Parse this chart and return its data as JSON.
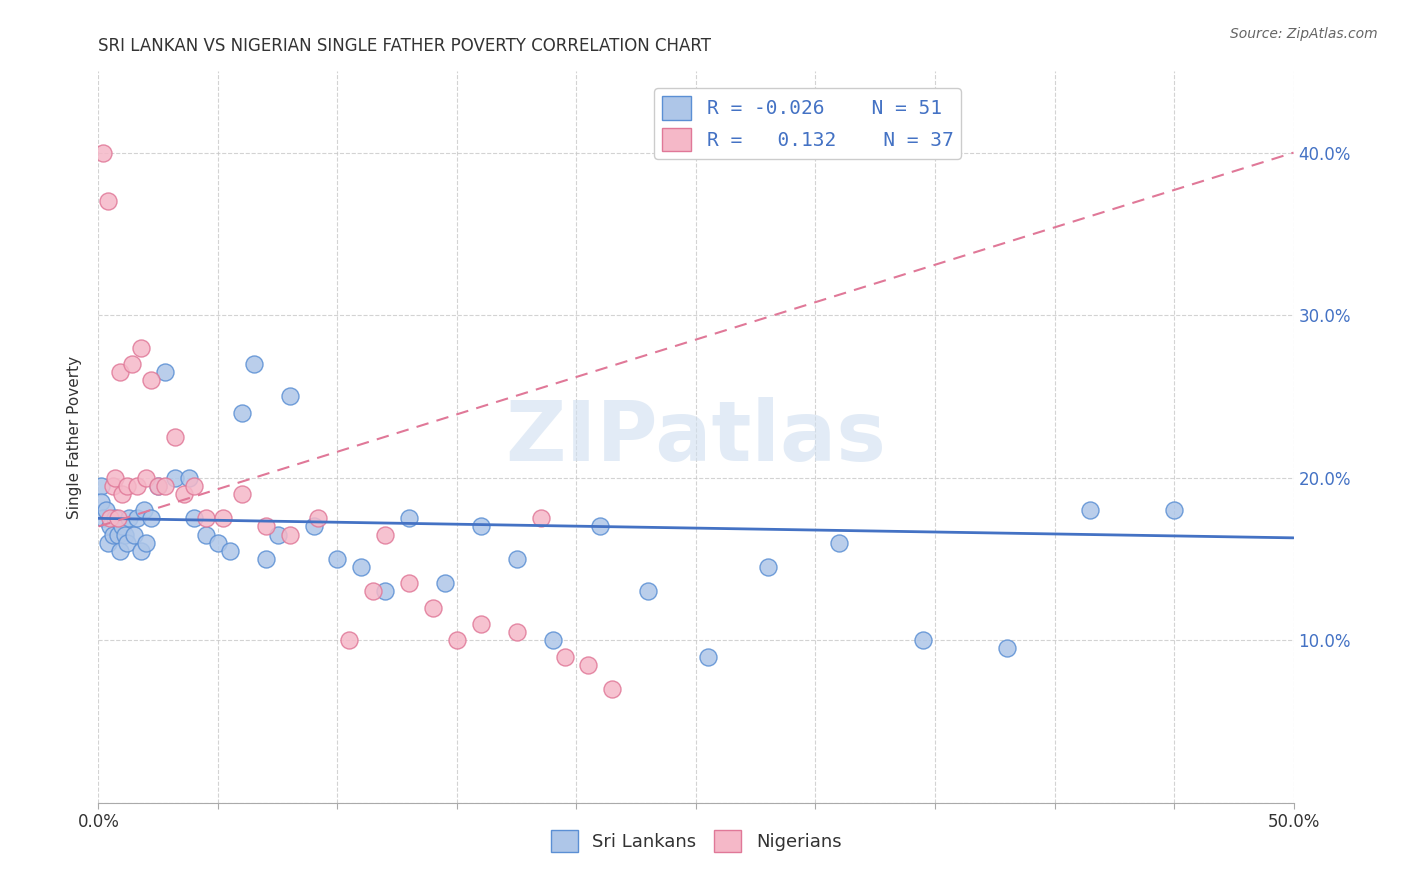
{
  "title": "SRI LANKAN VS NIGERIAN SINGLE FATHER POVERTY CORRELATION CHART",
  "source": "Source: ZipAtlas.com",
  "ylabel": "Single Father Poverty",
  "xlim": [
    0.0,
    0.5
  ],
  "ylim": [
    0.0,
    0.45
  ],
  "xtick_vals": [
    0.0,
    0.05,
    0.1,
    0.15,
    0.2,
    0.25,
    0.3,
    0.35,
    0.4,
    0.45,
    0.5
  ],
  "ytick_vals": [
    0.0,
    0.1,
    0.2,
    0.3,
    0.4
  ],
  "background_color": "#ffffff",
  "grid_color": "#c8c8c8",
  "watermark": "ZIPatlas",
  "sri_lankan_fill": "#aec6e8",
  "sri_lankan_edge": "#5b8fd4",
  "nigerian_fill": "#f5b8c8",
  "nigerian_edge": "#e07898",
  "sri_lankan_line_color": "#4472c4",
  "nigerian_line_color": "#e07898",
  "legend_sri_R": "-0.026",
  "legend_sri_N": "51",
  "legend_nig_R": "0.132",
  "legend_nig_N": "37",
  "sri_lankans_x": [
    0.001,
    0.001,
    0.002,
    0.003,
    0.004,
    0.005,
    0.006,
    0.007,
    0.008,
    0.009,
    0.01,
    0.011,
    0.012,
    0.013,
    0.015,
    0.016,
    0.018,
    0.019,
    0.02,
    0.022,
    0.025,
    0.028,
    0.032,
    0.038,
    0.04,
    0.045,
    0.05,
    0.055,
    0.06,
    0.065,
    0.07,
    0.075,
    0.08,
    0.09,
    0.1,
    0.11,
    0.12,
    0.13,
    0.145,
    0.16,
    0.175,
    0.19,
    0.21,
    0.23,
    0.255,
    0.28,
    0.31,
    0.345,
    0.38,
    0.415,
    0.45
  ],
  "sri_lankans_y": [
    0.195,
    0.185,
    0.175,
    0.18,
    0.16,
    0.17,
    0.165,
    0.175,
    0.165,
    0.155,
    0.17,
    0.165,
    0.16,
    0.175,
    0.165,
    0.175,
    0.155,
    0.18,
    0.16,
    0.175,
    0.195,
    0.265,
    0.2,
    0.2,
    0.175,
    0.165,
    0.16,
    0.155,
    0.24,
    0.27,
    0.15,
    0.165,
    0.25,
    0.17,
    0.15,
    0.145,
    0.13,
    0.175,
    0.135,
    0.17,
    0.15,
    0.1,
    0.17,
    0.13,
    0.09,
    0.145,
    0.16,
    0.1,
    0.095,
    0.18,
    0.18
  ],
  "nigerians_x": [
    0.002,
    0.004,
    0.005,
    0.006,
    0.007,
    0.008,
    0.009,
    0.01,
    0.012,
    0.014,
    0.016,
    0.018,
    0.02,
    0.022,
    0.025,
    0.028,
    0.032,
    0.036,
    0.04,
    0.045,
    0.052,
    0.06,
    0.07,
    0.08,
    0.092,
    0.105,
    0.115,
    0.12,
    0.13,
    0.14,
    0.15,
    0.16,
    0.175,
    0.185,
    0.195,
    0.205,
    0.215
  ],
  "nigerians_y": [
    0.4,
    0.37,
    0.175,
    0.195,
    0.2,
    0.175,
    0.265,
    0.19,
    0.195,
    0.27,
    0.195,
    0.28,
    0.2,
    0.26,
    0.195,
    0.195,
    0.225,
    0.19,
    0.195,
    0.175,
    0.175,
    0.19,
    0.17,
    0.165,
    0.175,
    0.1,
    0.13,
    0.165,
    0.135,
    0.12,
    0.1,
    0.11,
    0.105,
    0.175,
    0.09,
    0.085,
    0.07
  ]
}
